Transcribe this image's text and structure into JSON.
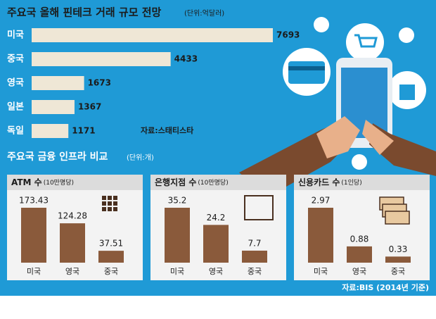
{
  "chart_data": [
    {
      "type": "bar",
      "orientation": "horizontal",
      "title": "주요국 올해 핀테크 거래 규모 전망",
      "unit": "(단위:억달러)",
      "categories": [
        "미국",
        "중국",
        "영국",
        "일본",
        "독일"
      ],
      "values": [
        7693,
        4433,
        1673,
        1367,
        1171
      ],
      "color": "#efe7d6",
      "source": "자료:스태티스타"
    },
    {
      "type": "bar",
      "title": "ATM 수",
      "unit": "(10만명당)",
      "categories": [
        "미국",
        "영국",
        "중국"
      ],
      "values": [
        173.43,
        124.28,
        37.51
      ],
      "color": "#8a5a3b"
    },
    {
      "type": "bar",
      "title": "은행지점 수",
      "unit": "(10만명당)",
      "categories": [
        "미국",
        "영국",
        "중국"
      ],
      "values": [
        35.2,
        24.2,
        7.7
      ],
      "color": "#8a5a3b"
    },
    {
      "type": "bar",
      "title": "신용카드 수",
      "unit": "(1인당)",
      "categories": [
        "미국",
        "영국",
        "중국"
      ],
      "values": [
        2.97,
        0.88,
        0.33
      ],
      "color": "#8a5a3b"
    }
  ],
  "section": {
    "title": "주요국 금융 인프라 비교",
    "unit": "(단위:개)"
  },
  "source": "자료:BIS (2014년 기준)"
}
